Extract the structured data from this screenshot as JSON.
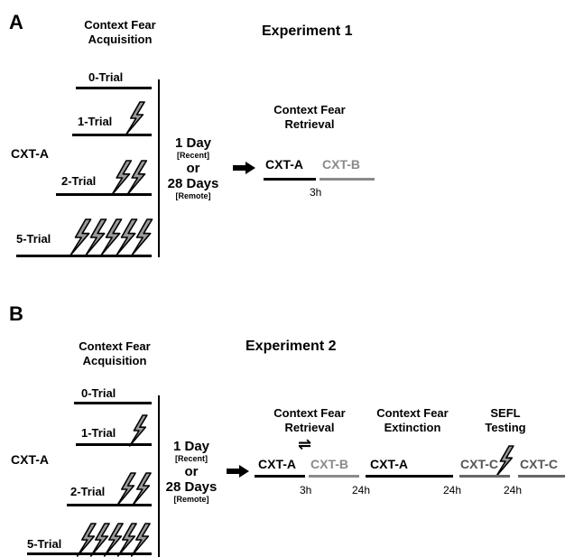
{
  "panels": {
    "a": {
      "letter": "A",
      "experiment_title": "Experiment 1",
      "acquisition_title": "Context Fear Acquisition",
      "context_label": "CXT-A",
      "trials": [
        {
          "label": "0-Trial",
          "shocks": 0
        },
        {
          "label": "1-Trial",
          "shocks": 1
        },
        {
          "label": "2-Trial",
          "shocks": 2
        },
        {
          "label": "5-Trial",
          "shocks": 5
        }
      ],
      "delay": {
        "line1": "1 Day",
        "line2": "[Recent]",
        "line3": "or",
        "line4": "28 Days",
        "line5": "[Remote]"
      },
      "retrieval_title": "Context Fear Retrieval",
      "retrieval_ctx1": "CXT-A",
      "retrieval_ctx2": "CXT-B",
      "retrieval_gap": "3h"
    },
    "b": {
      "letter": "B",
      "experiment_title": "Experiment 2",
      "acquisition_title": "Context Fear Acquisition",
      "context_label": "CXT-A",
      "trials": [
        {
          "label": "0-Trial",
          "shocks": 0
        },
        {
          "label": "1-Trial",
          "shocks": 1
        },
        {
          "label": "2-Trial",
          "shocks": 2
        },
        {
          "label": "5-Trial",
          "shocks": 5
        }
      ],
      "delay": {
        "line1": "1 Day",
        "line2": "[Recent]",
        "line3": "or",
        "line4": "28 Days",
        "line5": "[Remote]"
      },
      "retrieval_title": "Context Fear Retrieval",
      "extinction_title": "Context Fear Extinction",
      "sefl_title": "SEFL Testing",
      "retrieval_ctx1": "CXT-A",
      "retrieval_ctx2": "CXT-B",
      "extinction_ctx": "CXT-A",
      "sefl_ctx1": "CXT-C",
      "sefl_ctx2": "CXT-C",
      "gap_3h": "3h",
      "gap_24h_1": "24h",
      "gap_24h_2": "24h",
      "gap_24h_3": "24h",
      "swap_symbol": "⇌"
    }
  },
  "colors": {
    "black": "#000000",
    "gray": "#8a8a8a",
    "dark_gray": "#555555",
    "shock_fill": "#9a9a9a"
  }
}
